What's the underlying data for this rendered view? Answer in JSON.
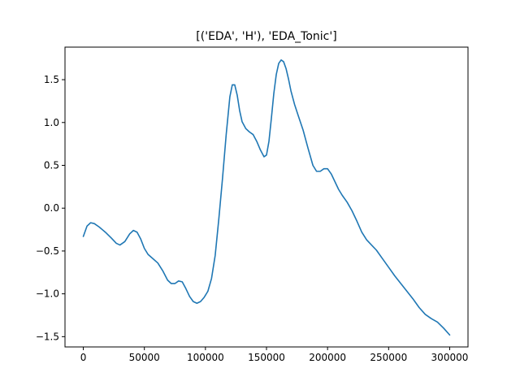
{
  "chart_data": {
    "type": "line",
    "title": "[('EDA', 'H'), 'EDA_Tonic']",
    "xlabel": "",
    "ylabel": "",
    "xlim": [
      -15000,
      315000
    ],
    "ylim": [
      -1.62,
      1.88
    ],
    "grid": false,
    "legend": "none",
    "xticks": [
      0,
      50000,
      100000,
      150000,
      200000,
      250000,
      300000
    ],
    "xtick_labels": [
      "0",
      "50000",
      "100000",
      "150000",
      "200000",
      "250000",
      "300000"
    ],
    "yticks": [
      -1.5,
      -1.0,
      -0.5,
      0.0,
      0.5,
      1.0,
      1.5
    ],
    "ytick_labels": [
      "−1.5",
      "−1.0",
      "−0.5",
      "0.0",
      "0.5",
      "1.0",
      "1.5"
    ],
    "series": [
      {
        "color": "#1f77b4",
        "x": [
          0,
          3000,
          6000,
          9000,
          13000,
          18000,
          23000,
          27000,
          30000,
          34000,
          38000,
          41000,
          44000,
          47000,
          50000,
          53000,
          57000,
          61000,
          65000,
          69000,
          72000,
          75000,
          78000,
          81000,
          84000,
          87000,
          90000,
          93000,
          96000,
          99000,
          102000,
          105000,
          108000,
          111000,
          114000,
          117000,
          120000,
          122000,
          124000,
          126000,
          128000,
          130000,
          133000,
          136000,
          139000,
          142000,
          145000,
          148000,
          150000,
          152000,
          154000,
          156000,
          158000,
          160000,
          162000,
          164000,
          166000,
          168000,
          170000,
          173000,
          176000,
          180000,
          184000,
          188000,
          191000,
          194000,
          197000,
          200000,
          203000,
          206000,
          209000,
          212000,
          216000,
          220000,
          224000,
          228000,
          232000,
          236000,
          240000,
          245000,
          250000,
          255000,
          260000,
          265000,
          270000,
          275000,
          280000,
          285000,
          290000,
          295000,
          300000
        ],
        "values": [
          -0.33,
          -0.21,
          -0.17,
          -0.18,
          -0.22,
          -0.28,
          -0.35,
          -0.41,
          -0.43,
          -0.39,
          -0.3,
          -0.26,
          -0.28,
          -0.36,
          -0.47,
          -0.54,
          -0.59,
          -0.64,
          -0.73,
          -0.84,
          -0.88,
          -0.88,
          -0.85,
          -0.86,
          -0.94,
          -1.03,
          -1.09,
          -1.11,
          -1.09,
          -1.04,
          -0.97,
          -0.82,
          -0.55,
          -0.12,
          0.35,
          0.86,
          1.3,
          1.44,
          1.44,
          1.32,
          1.14,
          1.01,
          0.93,
          0.89,
          0.86,
          0.78,
          0.68,
          0.6,
          0.62,
          0.78,
          1.05,
          1.34,
          1.56,
          1.69,
          1.73,
          1.71,
          1.63,
          1.51,
          1.37,
          1.21,
          1.08,
          0.91,
          0.7,
          0.5,
          0.43,
          0.43,
          0.46,
          0.46,
          0.4,
          0.31,
          0.22,
          0.15,
          0.07,
          -0.03,
          -0.15,
          -0.28,
          -0.37,
          -0.43,
          -0.49,
          -0.59,
          -0.69,
          -0.79,
          -0.88,
          -0.97,
          -1.06,
          -1.16,
          -1.24,
          -1.29,
          -1.33,
          -1.4,
          -1.48
        ]
      }
    ]
  }
}
